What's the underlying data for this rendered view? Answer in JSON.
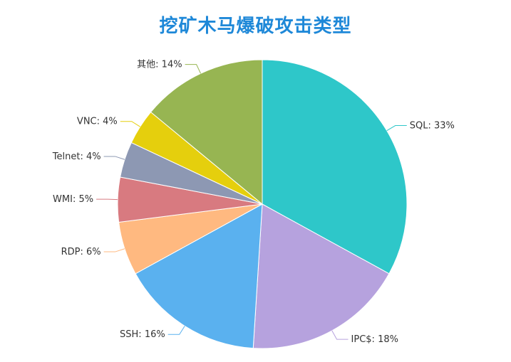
{
  "chart_data": {
    "type": "pie",
    "title": "挖矿木马爆破攻击类型",
    "slices": [
      {
        "name": "SQL",
        "value": 33,
        "label": "SQL: 33%",
        "color": "#2ec7c9"
      },
      {
        "name": "IPC$",
        "value": 18,
        "label": "IPC$: 18%",
        "color": "#b6a2de"
      },
      {
        "name": "SSH",
        "value": 16,
        "label": "SSH: 16%",
        "color": "#5ab1ef"
      },
      {
        "name": "RDP",
        "value": 6,
        "label": "RDP: 6%",
        "color": "#ffb980"
      },
      {
        "name": "WMI",
        "value": 5,
        "label": "WMI: 5%",
        "color": "#d87a80"
      },
      {
        "name": "Telnet",
        "value": 4,
        "label": "Telnet: 4%",
        "color": "#8d98b3"
      },
      {
        "name": "VNC",
        "value": 4,
        "label": "VNC: 4%",
        "color": "#e5cf0d"
      },
      {
        "name": "其他",
        "value": 14,
        "label": "其他: 14%",
        "color": "#97b552"
      }
    ]
  }
}
